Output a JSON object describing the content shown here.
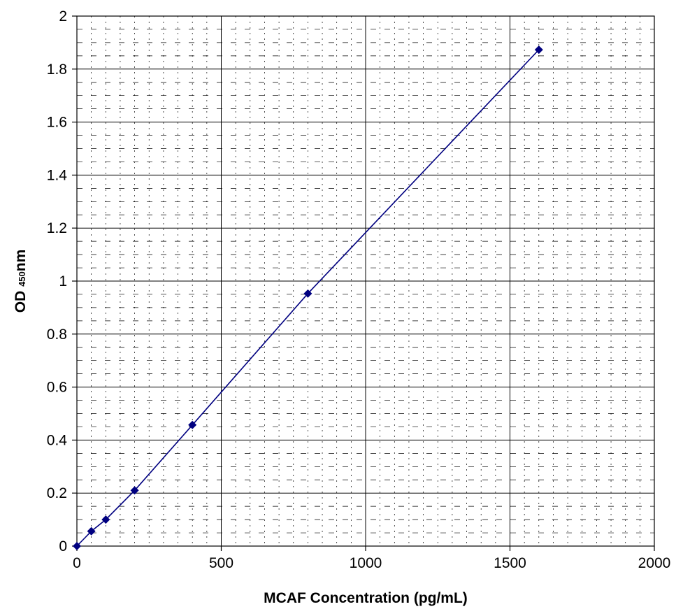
{
  "chart_data": {
    "type": "scatter",
    "title": "",
    "xlabel": "MCAF Concentration (pg/mL)",
    "ylabel": {
      "prefix": "OD ",
      "subscript": "450",
      "suffix": "nm"
    },
    "xlim": [
      0,
      2000
    ],
    "ylim": [
      0,
      2
    ],
    "xticks": [
      0,
      500,
      1000,
      1500,
      2000
    ],
    "xtick_labels": [
      "0",
      "500",
      "1000",
      "1500",
      "2000"
    ],
    "yticks": [
      0,
      0.2,
      0.4,
      0.6,
      0.8,
      1,
      1.2,
      1.4,
      1.6,
      1.8,
      2
    ],
    "ytick_labels": [
      "0",
      "0.2",
      "0.4",
      "0.6",
      "0.8",
      "1",
      "1.2",
      "1.4",
      "1.6",
      "1.8",
      "2"
    ],
    "x_minor_step": 50,
    "y_minor_step": 0.05,
    "grid": true,
    "legend": "none",
    "series": [
      {
        "marker": "diamond",
        "line": true,
        "color": "#000080",
        "x": [
          0,
          50,
          100,
          200,
          400,
          800,
          1600
        ],
        "y": [
          0.0,
          0.056,
          0.1,
          0.21,
          0.457,
          0.953,
          1.873
        ]
      }
    ]
  }
}
